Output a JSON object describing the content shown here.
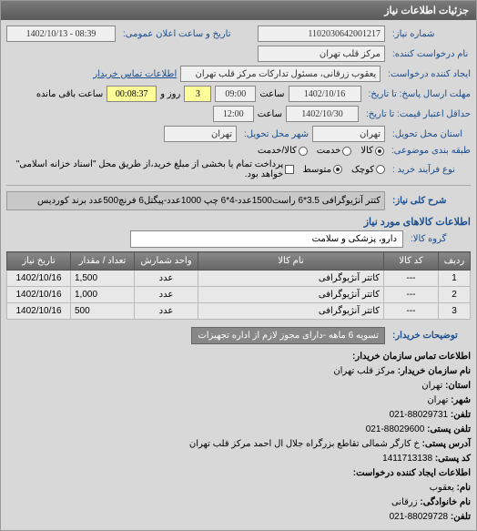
{
  "panel": {
    "title": "جزئیات اطلاعات نیاز"
  },
  "header": {
    "number_label": "شماره نیاز:",
    "number": "1102030642001217",
    "date_label": "تاریخ و ساعت اعلان عمومی:",
    "date": "08:39 - 1402/10/13",
    "requester_label": "نام درخواست کننده:",
    "requester": "مرکز قلب تهران",
    "creator_label": "ایجاد کننده درخواست:",
    "creator": "یعقوب زرقانی، مسئول تدارکات مرکز قلب تهران",
    "contact_link": "اطلاعات تماس خریدار",
    "deadline_label": "مهلت ارسال پاسخ: تا تاریخ:",
    "deadline_date": "1402/10/16",
    "deadline_time_label": "ساعت",
    "deadline_time": "09:00",
    "remaining_days": "3",
    "remaining_days_label": "روز و",
    "remaining_time": "00:08:37",
    "remaining_label": "ساعت باقی مانده",
    "price_valid_label": "حداقل اعتبار قیمت: تا تاریخ:",
    "price_valid_date": "1402/10/30",
    "price_valid_time_label": "ساعت",
    "price_valid_time": "12:00",
    "delivery_state_label": "استان محل تحویل:",
    "delivery_state": "تهران",
    "delivery_city_label": "شهر محل تحویل:",
    "delivery_city": "تهران",
    "category_label": "طبقه بندی موضوعی:",
    "process_label": "نوع فرآیند خرید :"
  },
  "radios": {
    "goods": "کالا",
    "service": "خدمت",
    "both": "کالا/خدمت",
    "small": "کوچک",
    "mid": "متوسط",
    "process_text": "پرداخت تمام یا بخشی از مبلغ خرید،از طریق محل \"اسناد خزانه اسلامی\" خواهد بود."
  },
  "need": {
    "title_label": "شرح کلی نیاز:",
    "title": "کتتر آنژیوگرافی 3.5*6 راست1500عدد-4*6 چپ 1000عدد-پیگتل6 فرنچ500عدد برند کوردیس",
    "goods_info_title": "اطلاعات کالاهای مورد نیاز",
    "group_label": "گروه کالا:",
    "group": "دارو، پزشکی و سلامت"
  },
  "table": {
    "cols": [
      "ردیف",
      "کد کالا",
      "نام کالا",
      "واحد شمارش",
      "تعداد / مقدار",
      "تاریخ نیاز"
    ],
    "rows": [
      [
        "1",
        "---",
        "کاتتر آنژیوگرافی",
        "عدد",
        "1,500",
        "1402/10/16"
      ],
      [
        "2",
        "---",
        "کاتتر آنژیوگرافی",
        "عدد",
        "1,000",
        "1402/10/16"
      ],
      [
        "3",
        "---",
        "کاتتر آنژیوگرافی",
        "عدد",
        "500",
        "1402/10/16"
      ]
    ],
    "col_widths": [
      "35px",
      "60px",
      "auto",
      "70px",
      "70px",
      "70px"
    ]
  },
  "buyer": {
    "desc_label": "توضیحات خریدار:",
    "desc": "تسویه 6 ماهه -دارای مجوز لازم از اداره تجهیزات",
    "contact_title": "اطلاعات تماس سازمان خریدار:",
    "org_label": "نام سازمان خریدار:",
    "org": "مرکز قلب تهران",
    "state_label": "استان:",
    "state": "تهران",
    "city_label": "شهر:",
    "city": "تهران",
    "tel_label": "تلفن:",
    "tel": "88029731-021",
    "fax_label": "تلفن پستی:",
    "fax": "88029600-021",
    "address_label": "آدرس پستی:",
    "address": "خ کارگر شمالی تقاطع بزرگراه جلال ال احمد مرکز قلب تهران",
    "postcode_label": "کد پستی:",
    "postcode": "1411713138",
    "creator_info_title": "اطلاعات ایجاد کننده درخواست:",
    "name_label": "نام:",
    "name": "یعقوب",
    "lastname_label": "نام خانوادگی:",
    "lastname": "زرقانی",
    "creator_tel_label": "تلفن:",
    "creator_tel": "88029728-021"
  },
  "colors": {
    "header_bg": "#6a6a6a",
    "link": "#1a4d8f",
    "yellow": "#ffff99"
  }
}
